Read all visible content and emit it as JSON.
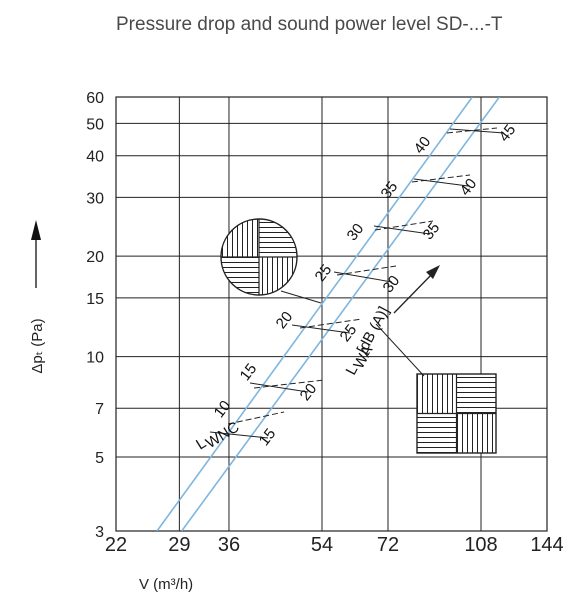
{
  "chart_data": {
    "type": "line",
    "title": "Pressure drop and sound power level SD-...-T",
    "xlabel": "V (m³/h)",
    "ylabel": "Δpₜ (Pa)",
    "x_scale": "log",
    "y_scale": "log",
    "xlim": [
      22,
      144
    ],
    "ylim": [
      3,
      60
    ],
    "x_ticks": [
      "22",
      "29",
      "36",
      "54",
      "72",
      "108",
      "144"
    ],
    "y_ticks": [
      "3",
      "5",
      "7",
      "10",
      "15",
      "20",
      "30",
      "40",
      "50",
      "60"
    ],
    "grid": true,
    "series": [
      {
        "name": "L_WNC",
        "x": [
          26.3,
          104
        ],
        "y": [
          3,
          60
        ]
      },
      {
        "name": "L_WA [dB(A)]",
        "x": [
          29.3,
          117
        ],
        "y": [
          3,
          60
        ]
      }
    ],
    "nc_labels": [
      "10",
      "15",
      "20",
      "25",
      "30",
      "35",
      "40"
    ],
    "dba_labels": [
      "15",
      "20",
      "25",
      "30",
      "35",
      "40",
      "45"
    ],
    "curve_label_lwnc_main": "L",
    "curve_label_lwnc_sub": "WNC",
    "curve_label_lwa_main": "L",
    "curve_label_lwa_sub": "WA",
    "curve_label_lwa_unit": "[dB (A)]"
  }
}
